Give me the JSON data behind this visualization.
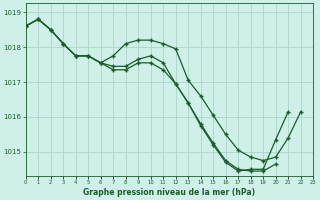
{
  "xlabel": "Graphe pression niveau de la mer (hPa)",
  "background_color": "#cff0e8",
  "grid_color": "#aad4ca",
  "line_color": "#1a5c2a",
  "hours": [
    0,
    1,
    2,
    3,
    4,
    5,
    6,
    7,
    8,
    9,
    10,
    11,
    12,
    13,
    14,
    15,
    16,
    17,
    18,
    19,
    20,
    21,
    22,
    23
  ],
  "line1": [
    1018.6,
    1018.8,
    1018.5,
    1018.1,
    1017.75,
    1017.75,
    1017.55,
    1017.75,
    1018.1,
    1018.2,
    1018.2,
    1018.1,
    1017.95,
    1017.05,
    1016.6,
    1016.05,
    1015.5,
    1015.05,
    1014.85,
    1014.75,
    1014.85,
    1015.4,
    1016.15,
    null
  ],
  "line2": [
    1018.6,
    1018.8,
    1018.5,
    1018.1,
    1017.75,
    1017.75,
    1017.55,
    1017.35,
    1017.35,
    1017.55,
    1017.55,
    1017.35,
    1016.95,
    1016.4,
    1015.8,
    1015.25,
    1014.75,
    1014.5,
    1014.45,
    1014.45,
    1014.65,
    null,
    null,
    null
  ],
  "line3": [
    1018.6,
    1018.8,
    1018.5,
    1018.1,
    1017.75,
    1017.75,
    1017.55,
    1017.45,
    1017.45,
    1017.65,
    1017.75,
    1017.55,
    1016.95,
    1016.4,
    1015.75,
    1015.2,
    1014.7,
    1014.45,
    1014.5,
    1014.5,
    1015.35,
    1016.15,
    null,
    null
  ],
  "ylim_min": 1014.3,
  "ylim_max": 1019.25,
  "yticks": [
    1015,
    1016,
    1017,
    1018,
    1019
  ]
}
